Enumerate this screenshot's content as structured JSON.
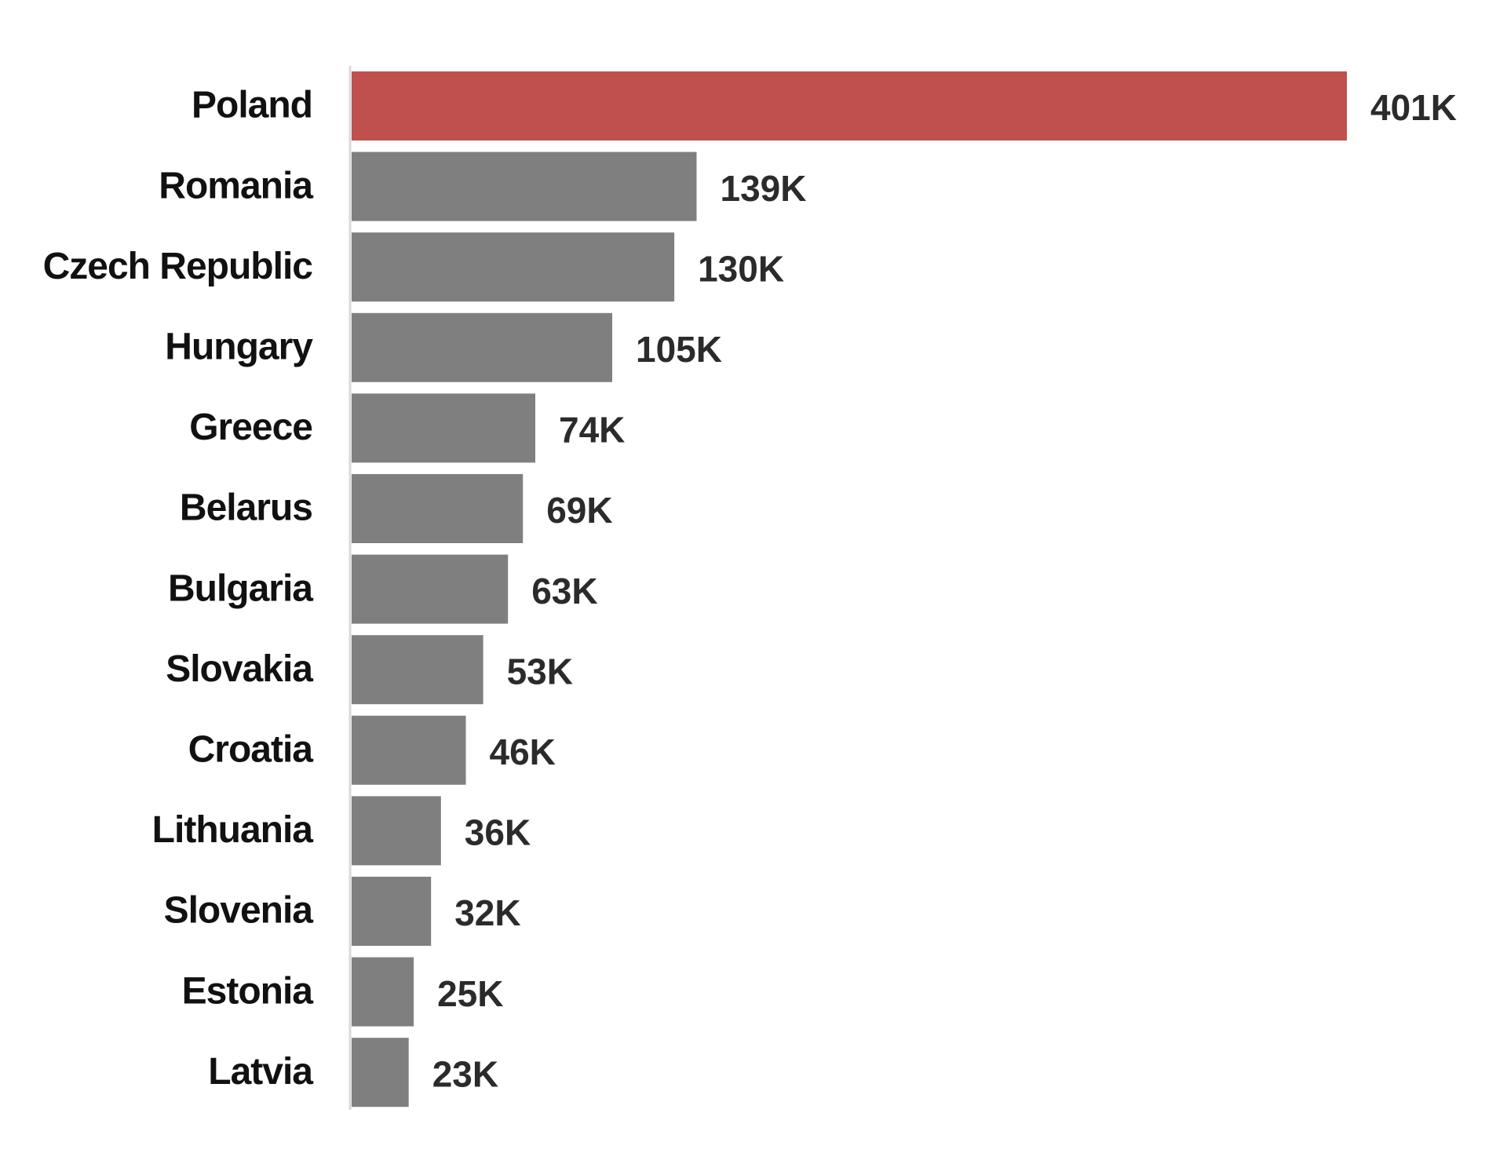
{
  "chart_data": {
    "type": "bar",
    "orientation": "horizontal",
    "categories": [
      "Poland",
      "Romania",
      "Czech Republic",
      "Hungary",
      "Greece",
      "Belarus",
      "Bulgaria",
      "Slovakia",
      "Croatia",
      "Lithuania",
      "Slovenia",
      "Estonia",
      "Latvia"
    ],
    "values": [
      401,
      139,
      130,
      105,
      74,
      69,
      63,
      53,
      46,
      36,
      32,
      25,
      23
    ],
    "value_labels": [
      "401K",
      "139K",
      "130K",
      "105K",
      "74K",
      "69K",
      "63K",
      "53K",
      "46K",
      "36K",
      "32K",
      "25K",
      "23K"
    ],
    "highlight_category": "Poland",
    "highlight_color": "#c0504d",
    "bar_color": "#7f7f7f",
    "axis_line_color": "#d9d9d9",
    "title": "",
    "xlabel": "",
    "ylabel": "",
    "xlim": [
      0,
      401
    ],
    "grid": false,
    "legend": "none"
  }
}
